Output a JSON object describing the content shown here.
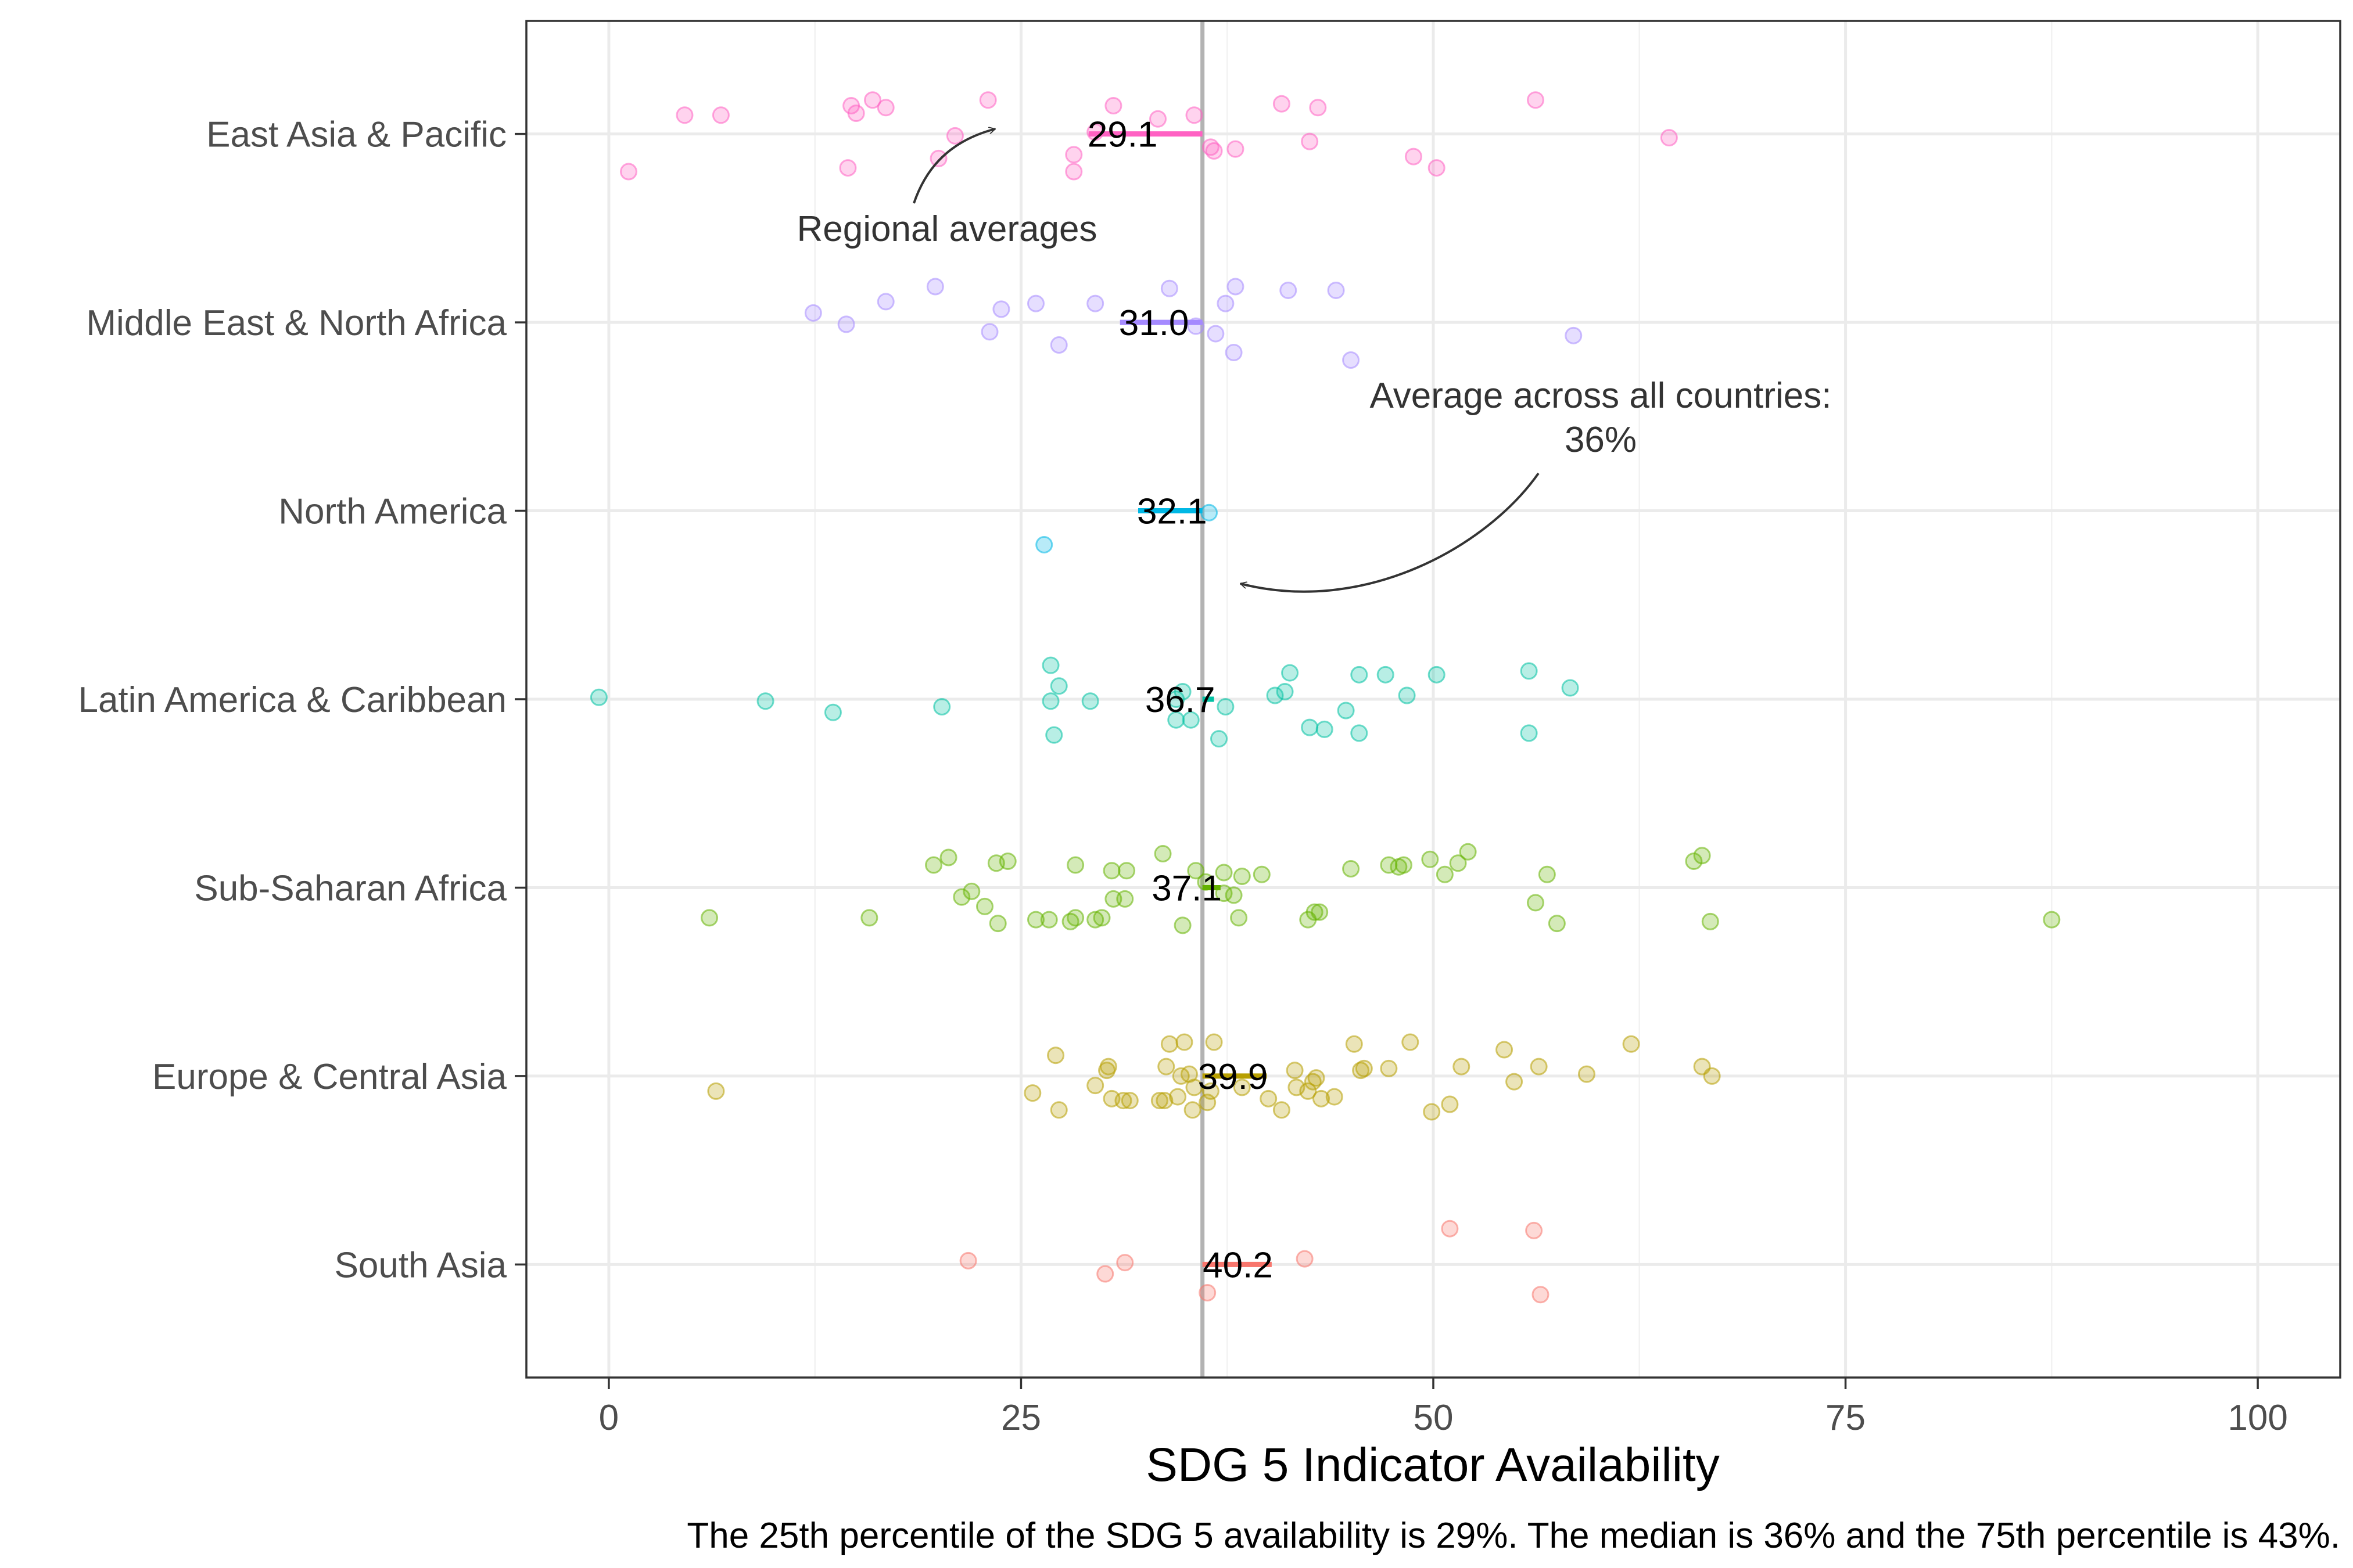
{
  "chart_data": {
    "type": "scatter",
    "xlabel": "SDG 5 Indicator Availability",
    "caption": "The 25th percentile of the SDG 5 availability is 29%. The median is 36% and the 75th percentile is 43%.",
    "xlim": [
      -5,
      105
    ],
    "x_ticks": [
      "0",
      "25",
      "50",
      "75",
      "100"
    ],
    "grid": true,
    "overall_average": 36,
    "annotations": {
      "regional": "Regional averages",
      "overall_line1": "Average across all countries:",
      "overall_line2": "36%"
    },
    "categories": [
      "East Asia & Pacific",
      "Middle East & North Africa",
      "North America",
      "Latin America & Caribbean",
      "Sub-Saharan Africa",
      "Europe & Central Asia",
      "South Asia"
    ],
    "series": [
      {
        "name": "East Asia & Pacific",
        "color": "#ff61c3",
        "average": 29.1,
        "average_label": "29.1",
        "points": [
          [
            1.2,
            0.2
          ],
          [
            14.5,
            0.18
          ],
          [
            20,
            0.13
          ],
          [
            21,
            0.01
          ],
          [
            28.2,
            0.2
          ],
          [
            28.2,
            0.11
          ],
          [
            36.7,
            0.09
          ],
          [
            36.5,
            0.07
          ],
          [
            38,
            0.08
          ],
          [
            42.5,
            0.04
          ],
          [
            48.8,
            0.12
          ],
          [
            50.2,
            0.18
          ],
          [
            64.3,
            0.02
          ],
          [
            4.6,
            -0.1
          ],
          [
            6.8,
            -0.1
          ],
          [
            15,
            -0.11
          ],
          [
            14.7,
            -0.15
          ],
          [
            16.8,
            -0.14
          ],
          [
            16,
            -0.18
          ],
          [
            23,
            -0.18
          ],
          [
            29.5,
            -0.01
          ],
          [
            30.6,
            -0.15
          ],
          [
            33.3,
            -0.08
          ],
          [
            35.5,
            -0.1
          ],
          [
            40.8,
            -0.16
          ],
          [
            43,
            -0.14
          ],
          [
            56.2,
            -0.18
          ]
        ]
      },
      {
        "name": "Middle East & North Africa",
        "color": "#a58aff",
        "average": 31.0,
        "average_label": "31.0",
        "points": [
          [
            45,
            0.2
          ],
          [
            37.9,
            0.16
          ],
          [
            27.3,
            0.12
          ],
          [
            23.1,
            0.05
          ],
          [
            14.4,
            0.01
          ],
          [
            36.8,
            0.06
          ],
          [
            35.6,
            0.02
          ],
          [
            58.5,
            0.07
          ],
          [
            12.4,
            -0.05
          ],
          [
            23.8,
            -0.07
          ],
          [
            16.8,
            -0.11
          ],
          [
            19.8,
            -0.19
          ],
          [
            25.9,
            -0.1
          ],
          [
            29.5,
            -0.1
          ],
          [
            34,
            -0.18
          ],
          [
            37.4,
            -0.1
          ],
          [
            38,
            -0.19
          ],
          [
            41.2,
            -0.17
          ],
          [
            44.1,
            -0.17
          ]
        ]
      },
      {
        "name": "North America",
        "color": "#00b8e5",
        "average": 32.1,
        "average_label": "32.1",
        "points": [
          [
            26.4,
            0.18
          ],
          [
            36.4,
            0.01
          ]
        ]
      },
      {
        "name": "Latin America & Caribbean",
        "color": "#00c1a3",
        "average": 36.7,
        "average_label": "36.7",
        "points": [
          [
            -0.6,
            -0.01
          ],
          [
            9.5,
            0.01
          ],
          [
            13.6,
            0.07
          ],
          [
            20.2,
            0.04
          ],
          [
            27,
            0.19
          ],
          [
            26.8,
            0.01
          ],
          [
            27.3,
            -0.07
          ],
          [
            26.8,
            -0.18
          ],
          [
            29.2,
            0.01
          ],
          [
            34.4,
            0.11
          ],
          [
            34.4,
            0.0
          ],
          [
            34.8,
            -0.04
          ],
          [
            35.3,
            0.11
          ],
          [
            37,
            0.21
          ],
          [
            37.4,
            0.04
          ],
          [
            40.4,
            -0.02
          ],
          [
            41,
            -0.04
          ],
          [
            41.3,
            -0.14
          ],
          [
            42.5,
            0.15
          ],
          [
            43.4,
            0.16
          ],
          [
            45.5,
            0.18
          ],
          [
            44.7,
            0.06
          ],
          [
            45.5,
            -0.13
          ],
          [
            47.1,
            -0.13
          ],
          [
            48.4,
            -0.02
          ],
          [
            50.2,
            -0.13
          ],
          [
            55.8,
            0.18
          ],
          [
            55.8,
            -0.15
          ],
          [
            58.3,
            -0.06
          ]
        ]
      },
      {
        "name": "Sub-Saharan Africa",
        "color": "#64b200",
        "average": 37.1,
        "average_label": "37.1",
        "points": [
          [
            6.1,
            0.16
          ],
          [
            15.8,
            0.16
          ],
          [
            23.6,
            0.19
          ],
          [
            22.8,
            0.1
          ],
          [
            21.4,
            0.05
          ],
          [
            22,
            0.02
          ],
          [
            19.7,
            -0.12
          ],
          [
            20.6,
            -0.16
          ],
          [
            23.5,
            -0.13
          ],
          [
            24.2,
            -0.14
          ],
          [
            25.9,
            0.17
          ],
          [
            26.7,
            0.17
          ],
          [
            28,
            0.18
          ],
          [
            28.3,
            0.16
          ],
          [
            29.5,
            0.17
          ],
          [
            29.9,
            0.16
          ],
          [
            30.6,
            0.06
          ],
          [
            30.5,
            -0.09
          ],
          [
            31.3,
            0.06
          ],
          [
            31.4,
            -0.09
          ],
          [
            28.3,
            -0.12
          ],
          [
            33.6,
            -0.18
          ],
          [
            34.8,
            0.2
          ],
          [
            35.6,
            -0.09
          ],
          [
            36.2,
            -0.03
          ],
          [
            37.3,
            0.03
          ],
          [
            37.3,
            -0.08
          ],
          [
            37.9,
            0.04
          ],
          [
            38.2,
            0.16
          ],
          [
            38.4,
            -0.06
          ],
          [
            39.6,
            -0.07
          ],
          [
            42.4,
            0.17
          ],
          [
            42.8,
            0.13
          ],
          [
            43.1,
            0.13
          ],
          [
            45,
            -0.1
          ],
          [
            47.3,
            -0.12
          ],
          [
            47.9,
            -0.11
          ],
          [
            48.2,
            -0.12
          ],
          [
            49.8,
            -0.15
          ],
          [
            50.7,
            -0.07
          ],
          [
            51.5,
            -0.13
          ],
          [
            52.1,
            -0.19
          ],
          [
            56.2,
            0.08
          ],
          [
            56.9,
            -0.07
          ],
          [
            57.5,
            0.19
          ],
          [
            65.8,
            -0.14
          ],
          [
            66.3,
            -0.17
          ],
          [
            66.8,
            0.18
          ],
          [
            87.5,
            0.17
          ]
        ]
      },
      {
        "name": "Europe & Central Asia",
        "color": "#b79f00",
        "average": 39.9,
        "average_label": "39.9",
        "points": [
          [
            6.5,
            0.08
          ],
          [
            25.7,
            0.09
          ],
          [
            27.3,
            0.18
          ],
          [
            27.1,
            -0.11
          ],
          [
            29.5,
            0.05
          ],
          [
            30.2,
            -0.03
          ],
          [
            30.3,
            -0.05
          ],
          [
            30.5,
            0.12
          ],
          [
            31.2,
            0.13
          ],
          [
            31.6,
            0.13
          ],
          [
            33.4,
            0.13
          ],
          [
            33.7,
            0.13
          ],
          [
            33.8,
            -0.05
          ],
          [
            34,
            -0.17
          ],
          [
            34.9,
            -0.18
          ],
          [
            34.5,
            0.11
          ],
          [
            34.7,
            -0.0
          ],
          [
            35.5,
            0.06
          ],
          [
            35.2,
            -0.01
          ],
          [
            35.4,
            0.18
          ],
          [
            36.3,
            0.14
          ],
          [
            36.5,
            0.08
          ],
          [
            36.7,
            -0.18
          ],
          [
            38.4,
            0.06
          ],
          [
            40,
            0.12
          ],
          [
            40.8,
            0.18
          ],
          [
            41.7,
            0.06
          ],
          [
            41.6,
            -0.03
          ],
          [
            42.4,
            0.08
          ],
          [
            42.7,
            0.03
          ],
          [
            42.9,
            0.01
          ],
          [
            43.2,
            0.12
          ],
          [
            44,
            0.11
          ],
          [
            45.2,
            -0.17
          ],
          [
            45.6,
            -0.03
          ],
          [
            45.8,
            -0.04
          ],
          [
            47.3,
            -0.04
          ],
          [
            48.6,
            -0.18
          ],
          [
            49.9,
            0.19
          ],
          [
            51,
            0.15
          ],
          [
            51.7,
            -0.05
          ],
          [
            54.3,
            -0.14
          ],
          [
            54.9,
            0.03
          ],
          [
            56.4,
            -0.05
          ],
          [
            59.3,
            -0.01
          ],
          [
            66.3,
            -0.05
          ],
          [
            66.9,
            0
          ],
          [
            62,
            -0.17
          ]
        ]
      },
      {
        "name": "South Asia",
        "color": "#f8766d",
        "average": 40.2,
        "average_label": "40.2",
        "points": [
          [
            21.8,
            -0.02
          ],
          [
            30.1,
            0.05
          ],
          [
            31.3,
            -0.01
          ],
          [
            36.3,
            0.15
          ],
          [
            42.2,
            -0.03
          ],
          [
            51,
            -0.19
          ],
          [
            56.1,
            -0.18
          ],
          [
            56.5,
            0.16
          ]
        ]
      }
    ]
  }
}
